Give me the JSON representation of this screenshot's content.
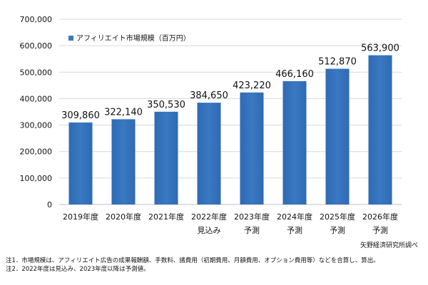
{
  "chart_data": {
    "type": "bar",
    "legend": {
      "label": "アフィリエイト市場規模（百万円）",
      "position": "top-left",
      "color": "#3a78c2"
    },
    "ylim": [
      0,
      700000
    ],
    "yticks": [
      0,
      100000,
      200000,
      300000,
      400000,
      500000,
      600000,
      700000
    ],
    "ytick_labels": [
      "0",
      "100,000",
      "200,000",
      "300,000",
      "400,000",
      "500,000",
      "600,000",
      "700,000"
    ],
    "grid": true,
    "categories": [
      {
        "line1": "2019年度",
        "line2": ""
      },
      {
        "line1": "2020年度",
        "line2": ""
      },
      {
        "line1": "2021年度",
        "line2": ""
      },
      {
        "line1": "2022年度",
        "line2": "見込み"
      },
      {
        "line1": "2023年度",
        "line2": "予測"
      },
      {
        "line1": "2024年度",
        "line2": "予測"
      },
      {
        "line1": "2025年度",
        "line2": "予測"
      },
      {
        "line1": "2026年度",
        "line2": "予測"
      }
    ],
    "values": [
      309860,
      322140,
      350530,
      384650,
      423220,
      466160,
      512870,
      563900
    ],
    "data_labels": [
      "309,860",
      "322,140",
      "350,530",
      "384,650",
      "423,220",
      "466,160",
      "512,870",
      "563,900"
    ],
    "bar_color": "#3a78c2"
  },
  "source": "矢野経済研究所調べ",
  "notes": [
    "注1．市場規模は、アフィリエイト広告の成果報酬額、手数料、諸費用（初期費用、月額費用、オプション費用等）などを合算し、算出。",
    "注2．2022年度は見込み、2023年度以降は予測値。"
  ]
}
